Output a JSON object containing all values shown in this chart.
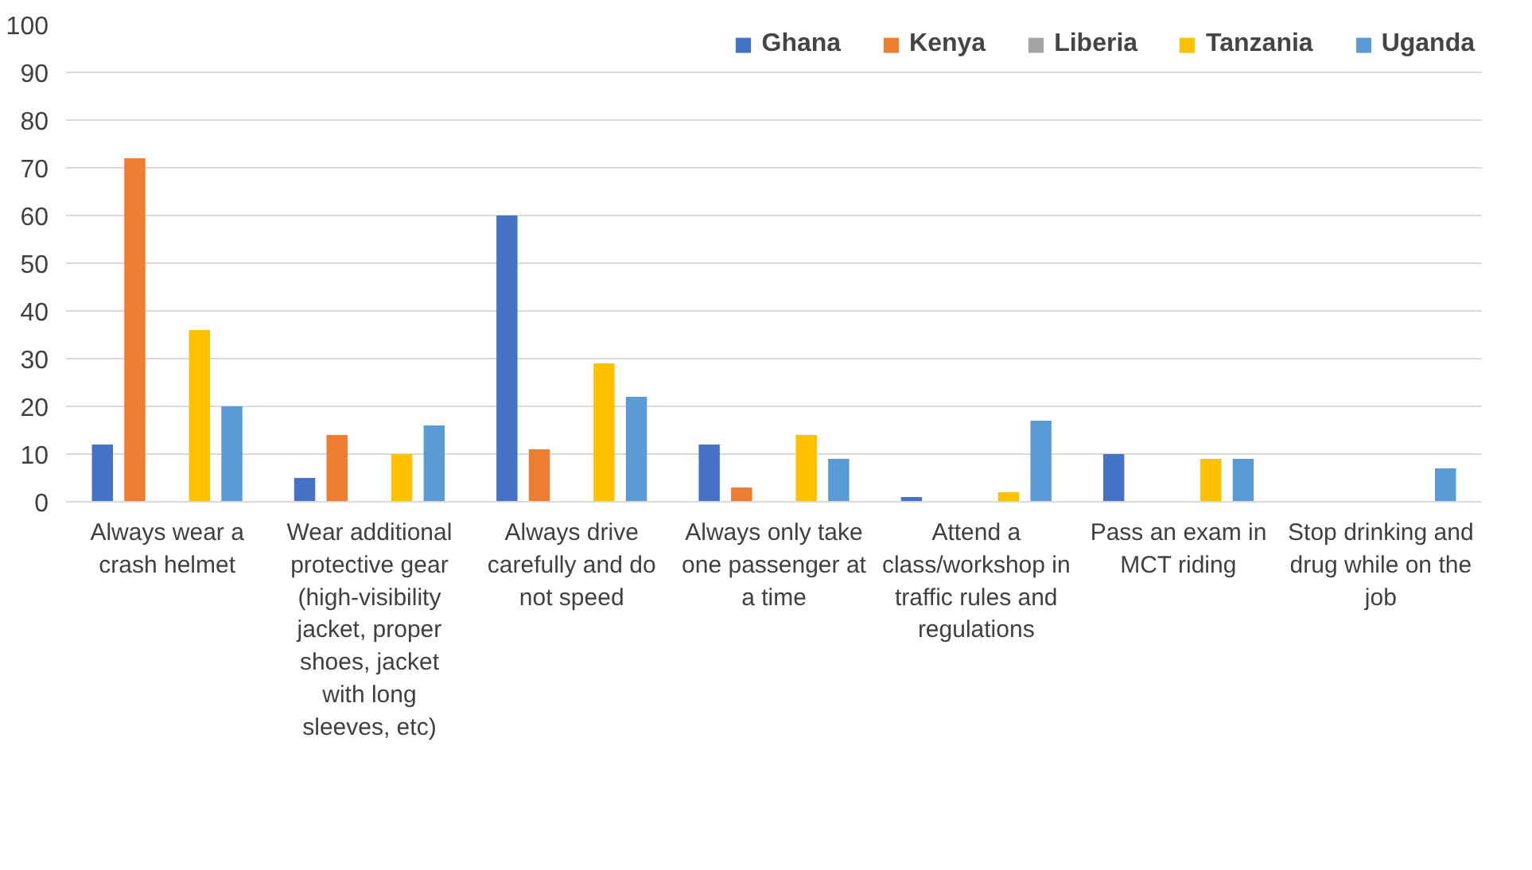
{
  "chart_data": {
    "type": "bar",
    "categories": [
      "Always wear a crash helmet",
      "Wear additional protective gear (high-visibility jacket, proper shoes, jacket with long sleeves, etc)",
      "Always drive carefully and do not speed",
      "Always only take one passenger at a time",
      "Attend a class/workshop in traffic rules and regulations",
      "Pass an exam in MCT riding",
      "Stop drinking and drug while on the job"
    ],
    "series": [
      {
        "name": "Ghana",
        "color": "#4472c4",
        "values": [
          12,
          5,
          60,
          12,
          1,
          10,
          0
        ]
      },
      {
        "name": "Kenya",
        "color": "#ed7d31",
        "values": [
          72,
          14,
          11,
          3,
          0,
          0,
          0
        ]
      },
      {
        "name": "Liberia",
        "color": "#a5a5a5",
        "values": [
          0,
          0,
          0,
          0,
          0,
          0,
          0
        ]
      },
      {
        "name": "Tanzania",
        "color": "#ffc000",
        "values": [
          36,
          10,
          29,
          14,
          2,
          9,
          0
        ]
      },
      {
        "name": "Uganda",
        "color": "#5b9bd5",
        "values": [
          20,
          16,
          22,
          9,
          17,
          9,
          7
        ]
      }
    ],
    "ylim": [
      0,
      100
    ],
    "yticks": [
      0,
      10,
      20,
      30,
      40,
      50,
      60,
      70,
      80,
      90,
      100
    ],
    "grid": "y",
    "legend": "top right"
  }
}
